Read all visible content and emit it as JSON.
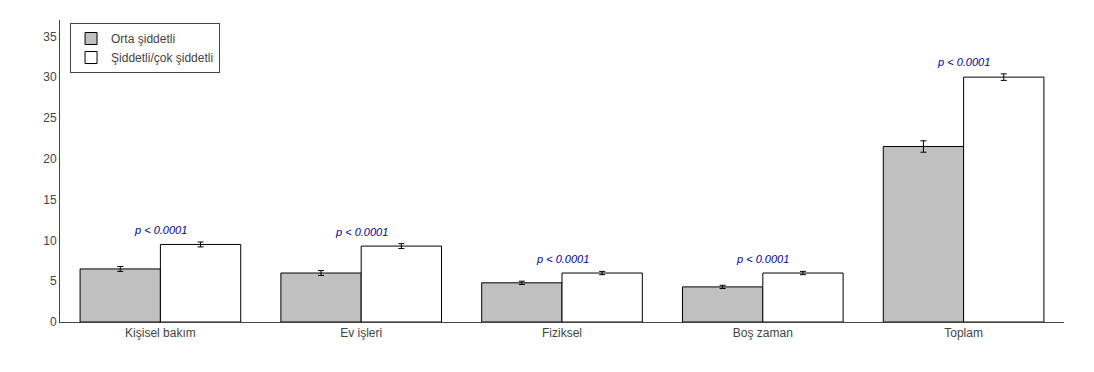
{
  "chart_data": {
    "type": "bar",
    "categories": [
      "Kişisel bakım",
      "Ev işleri",
      "Fiziksel",
      "Boş zaman",
      "Toplam"
    ],
    "series": [
      {
        "name": "Orta şiddetli",
        "color": "#c0c0c0",
        "values": [
          6.5,
          6.0,
          4.8,
          4.3,
          21.5
        ],
        "errors": [
          0.3,
          0.3,
          0.2,
          0.2,
          0.7
        ]
      },
      {
        "name": "Şiddetli/çok şiddetli",
        "color": "#ffffff",
        "values": [
          9.5,
          9.3,
          6.0,
          6.0,
          30.0
        ],
        "errors": [
          0.3,
          0.3,
          0.2,
          0.2,
          0.4
        ]
      }
    ],
    "annotations": [
      {
        "category": "Kişisel bakım",
        "text": "p < 0.0001",
        "color": "#0000aa"
      },
      {
        "category": "Ev işleri",
        "text": "p < 0.0001",
        "color": "#0000aa"
      },
      {
        "category": "Fiziksel",
        "text": "p < 0.0001",
        "color": "#0000aa"
      },
      {
        "category": "Boş zaman",
        "text": "p < 0.0001",
        "color": "#0000aa"
      },
      {
        "category": "Toplam",
        "text": "p < 0.0001",
        "color": "#0000aa"
      }
    ],
    "ylim": [
      0,
      37
    ],
    "yticks": [
      0,
      5,
      10,
      15,
      20,
      25,
      30,
      35
    ],
    "grid": false,
    "legend": "upper left"
  }
}
